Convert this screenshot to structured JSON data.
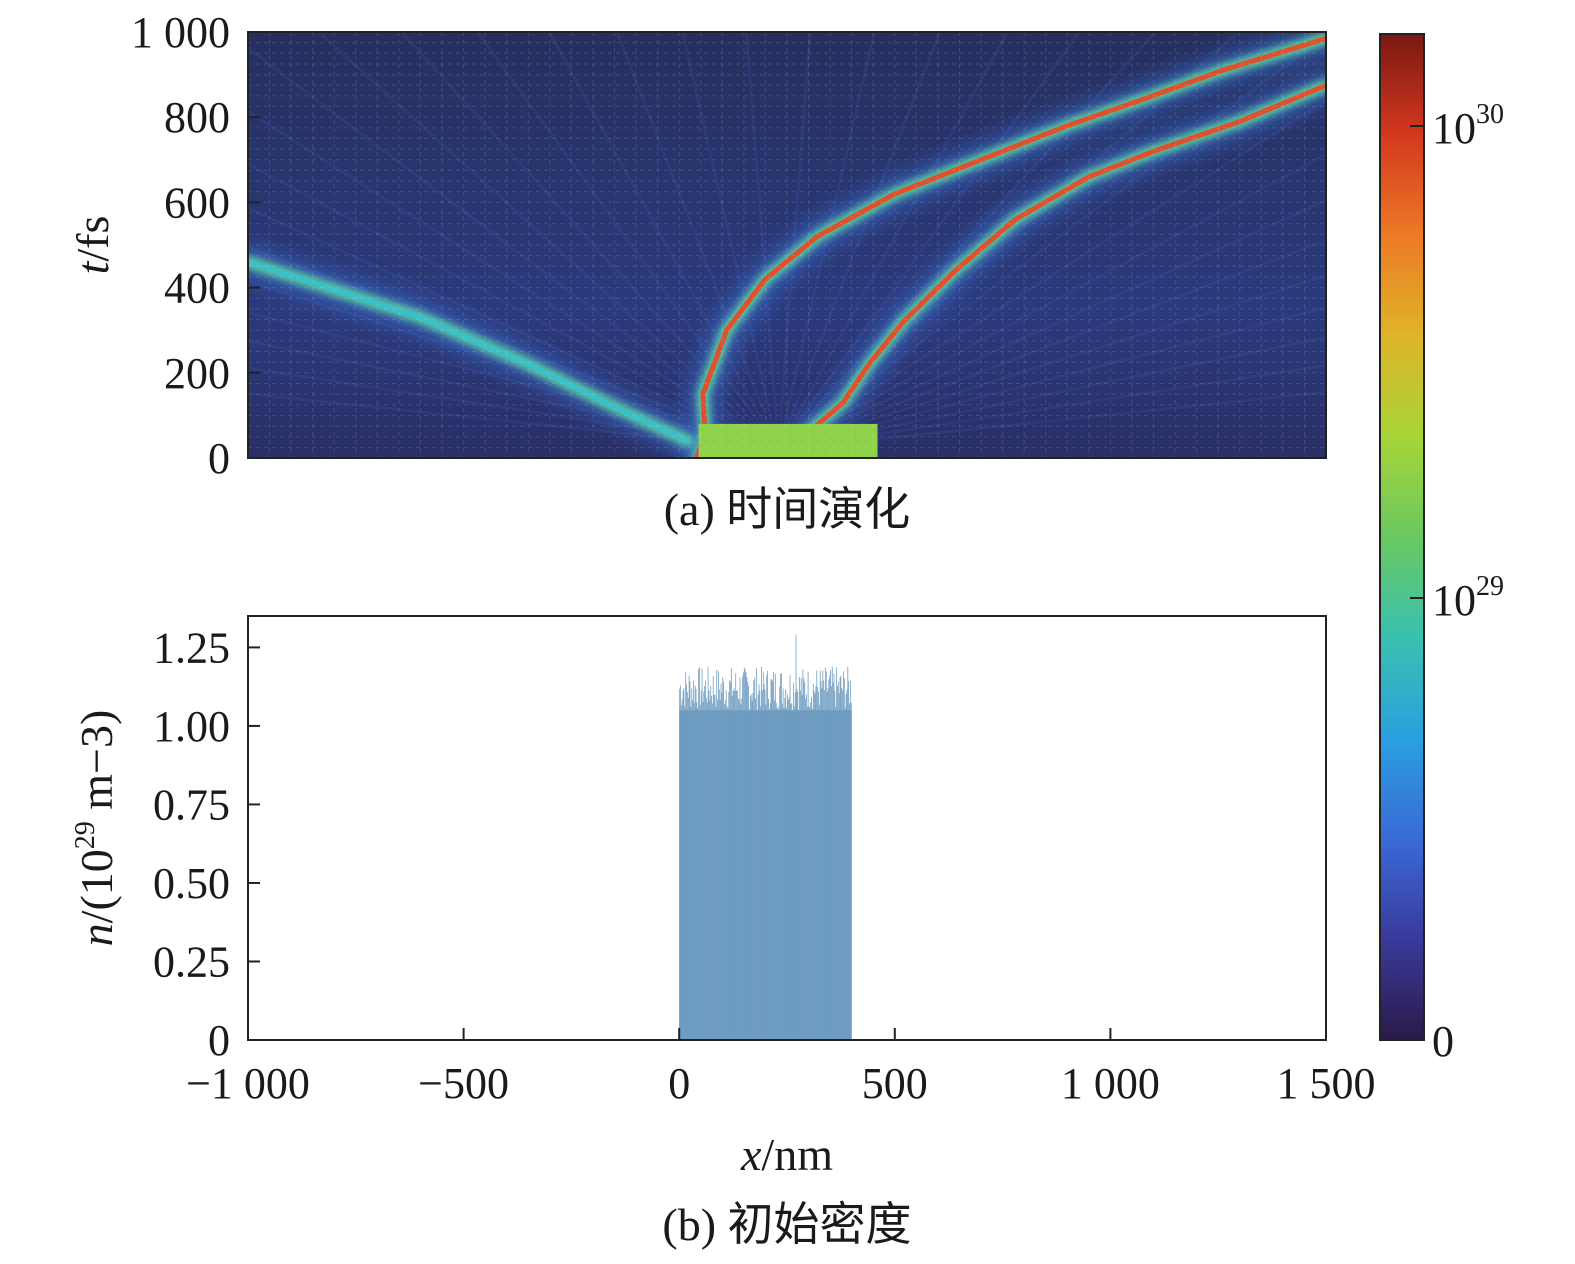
{
  "chart_data": [
    {
      "type": "heatmap",
      "panel": "a",
      "caption": "(a) 时间演化",
      "xlim": [
        -1000,
        1500
      ],
      "ylim": [
        0,
        1000
      ],
      "ylabel_var": "t",
      "ylabel_unit": "/fs",
      "yticks": [
        0,
        200,
        400,
        600,
        800,
        1000
      ],
      "ytick_labels": [
        "0",
        "200",
        "400",
        "600",
        "800",
        "1 000"
      ],
      "grid": true,
      "initial_slab": {
        "x": [
          45,
          460
        ],
        "t": [
          0,
          80
        ]
      },
      "bands": [
        {
          "x": [
            40,
            60,
            55,
            110,
            200,
            320,
            500,
            700,
            900,
            1070,
            1260,
            1500
          ],
          "t": [
            0,
            60,
            150,
            300,
            420,
            520,
            620,
            700,
            780,
            840,
            910,
            985
          ],
          "peak": "red"
        },
        {
          "x": [
            300,
            380,
            440,
            520,
            640,
            780,
            950,
            1100,
            1300,
            1500
          ],
          "t": [
            60,
            130,
            220,
            320,
            440,
            560,
            660,
            720,
            790,
            875
          ],
          "peak": "red"
        },
        {
          "x": [
            20,
            -150,
            -350,
            -600,
            -1000
          ],
          "t": [
            40,
            120,
            220,
            330,
            460
          ],
          "peak": "cyan"
        }
      ],
      "colorbar": {
        "scale": "log",
        "tick_labels": [
          {
            "base": "10",
            "exp": "30"
          },
          {
            "base": "10",
            "exp": "29"
          },
          {
            "base": "0",
            "exp": ""
          }
        ],
        "colors": [
          "#2a1a4a",
          "#3a3a9a",
          "#3a6ad6",
          "#2aa0e0",
          "#3ac0b0",
          "#6ac860",
          "#a8d438",
          "#e0b428",
          "#ec7a26",
          "#d4381e",
          "#7a1812"
        ]
      }
    },
    {
      "type": "bar",
      "panel": "b",
      "caption": "(b) 初始密度",
      "xlim": [
        -1000,
        1500
      ],
      "ylim": [
        0,
        1.35
      ],
      "xlabel_var": "x",
      "xlabel_unit": "/nm",
      "ylabel_var": "n",
      "ylabel_unit_prefix": "/(10",
      "ylabel_unit_exp": "29",
      "ylabel_unit_suffix": " m−3)",
      "xticks": [
        -1000,
        -500,
        0,
        500,
        1000,
        1500
      ],
      "xtick_labels": [
        "−1 000",
        "−500",
        "0",
        "500",
        "1 000",
        "1 500"
      ],
      "yticks": [
        0,
        0.25,
        0.5,
        0.75,
        1.0,
        1.25
      ],
      "ytick_labels": [
        "0",
        "0.25",
        "0.50",
        "0.75",
        "1.00",
        "1.25"
      ],
      "grid": true,
      "bar_color": "#6f9cc0",
      "slab": {
        "x": [
          0,
          400
        ],
        "n_mean": 1.12,
        "n_noise": 0.07
      },
      "series": [
        {
          "x_range": [
            0,
            400
          ],
          "values_approx": 1.12
        }
      ]
    }
  ]
}
